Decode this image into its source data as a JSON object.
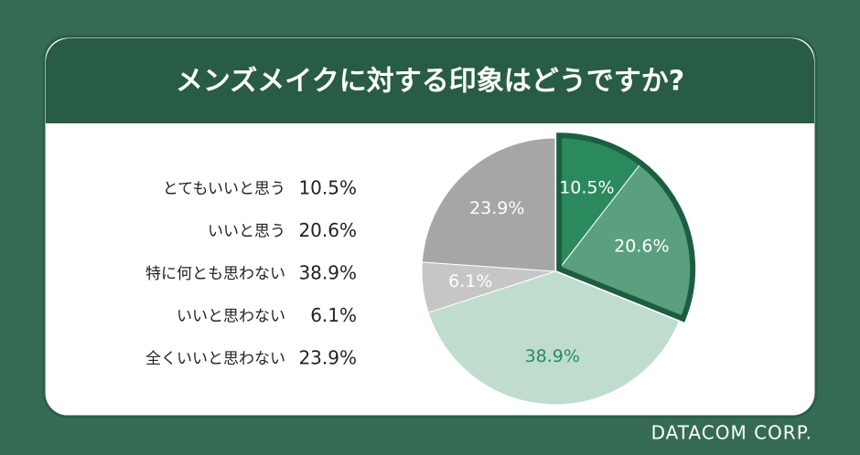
{
  "chart_data": {
    "type": "pie",
    "title": "メンズメイクに対する印象はどうですか?",
    "categories": [
      "とてもいいと思う",
      "いいと思う",
      "特に何とも思わない",
      "いいと思わない",
      "全くいいと思わない"
    ],
    "values": [
      10.5,
      20.6,
      38.9,
      6.1,
      23.9
    ],
    "value_labels": [
      "10.5%",
      "20.6%",
      "38.9%",
      "6.1%",
      "23.9%"
    ],
    "colors": [
      "#2b8a5d",
      "#5aa07f",
      "#bfdccf",
      "#c6c6c6",
      "#a6a6a6"
    ],
    "highlight": [
      0,
      1
    ]
  },
  "footer": "DATACOM CORP."
}
